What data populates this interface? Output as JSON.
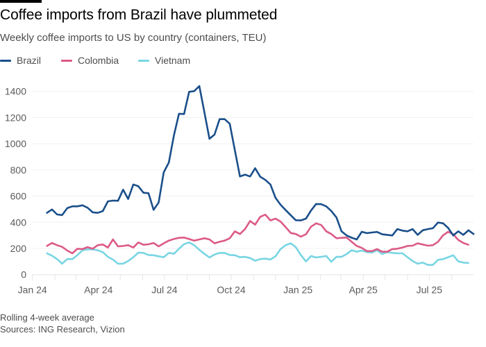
{
  "header": {
    "title": "Coffee imports from Brazil have plummeted",
    "subtitle": "Weekly coffee imports to US by country (containers, TEU)"
  },
  "legend": [
    {
      "label": "Brazil",
      "color": "#1a4f8a"
    },
    {
      "label": "Colombia",
      "color": "#dc5a86"
    },
    {
      "label": "Vietnam",
      "color": "#78d5e3"
    }
  ],
  "footer": {
    "note": "Rolling 4-week average",
    "sources": "Sources: ING Research, Vizion"
  },
  "chart_data": {
    "type": "line",
    "title": "Coffee imports from Brazil have plummeted",
    "subtitle": "Weekly coffee imports to US by country (containers, TEU)",
    "xlabel": "",
    "ylabel": "",
    "ylim": [
      0,
      1400
    ],
    "yticks": [
      0,
      200,
      400,
      600,
      800,
      1000,
      1200,
      1400
    ],
    "ytick_labels": [
      "0",
      "200",
      "400",
      "600",
      "800",
      "1000",
      "1200",
      "1400"
    ],
    "xlim": [
      "2024-01-01",
      "2025-08-31"
    ],
    "xticks": [
      {
        "label": "Jan 24",
        "date": "2024-01-01"
      },
      {
        "label": "Apr 24",
        "date": "2024-04-01"
      },
      {
        "label": "Jul 24",
        "date": "2024-07-01"
      },
      {
        "label": "Oct 24",
        "date": "2024-10-01"
      },
      {
        "label": "Jan 25",
        "date": "2025-01-01"
      },
      {
        "label": "Apr 25",
        "date": "2025-04-01"
      },
      {
        "label": "Jul 25",
        "date": "2025-07-01"
      }
    ],
    "x_start": "2024-01-21",
    "x_step_days": 7,
    "grid": true,
    "legend_position": "top-left",
    "note": "Rolling 4-week average",
    "series": [
      {
        "name": "Brazil",
        "color": "#1a4f8a",
        "values": [
          472,
          498,
          460,
          455,
          508,
          522,
          522,
          530,
          511,
          476,
          472,
          486,
          560,
          566,
          564,
          649,
          578,
          689,
          675,
          626,
          622,
          495,
          551,
          781,
          857,
          1064,
          1229,
          1227,
          1397,
          1402,
          1441,
          1241,
          1038,
          1070,
          1188,
          1188,
          1153,
          950,
          750,
          764,
          750,
          813,
          748,
          724,
          689,
          587,
          534,
          493,
          454,
          416,
          414,
          428,
          490,
          540,
          538,
          522,
          486,
          437,
          331,
          299,
          282,
          269,
          327,
          317,
          322,
          326,
          308,
          304,
          299,
          348,
          336,
          331,
          348,
          304,
          339,
          348,
          354,
          398,
          392,
          357,
          299,
          331,
          304,
          339,
          310
        ]
      },
      {
        "name": "Colombia",
        "color": "#dc5a86",
        "values": [
          219,
          242,
          225,
          212,
          184,
          163,
          198,
          195,
          210,
          198,
          225,
          230,
          207,
          269,
          216,
          219,
          225,
          207,
          246,
          228,
          232,
          242,
          216,
          239,
          260,
          272,
          281,
          283,
          272,
          260,
          269,
          278,
          269,
          239,
          251,
          260,
          278,
          331,
          310,
          348,
          410,
          382,
          442,
          458,
          414,
          428,
          405,
          363,
          318,
          310,
          290,
          308,
          366,
          392,
          379,
          331,
          310,
          278,
          281,
          283,
          251,
          219,
          204,
          180,
          180,
          195,
          175,
          175,
          195,
          198,
          207,
          219,
          221,
          239,
          230,
          221,
          225,
          251,
          301,
          327,
          308,
          265,
          242,
          228
        ]
      },
      {
        "name": "Vietnam",
        "color": "#78d5e3",
        "values": [
          163,
          145,
          119,
          83,
          119,
          119,
          149,
          186,
          193,
          193,
          186,
          172,
          136,
          115,
          83,
          83,
          104,
          133,
          168,
          166,
          150,
          148,
          140,
          133,
          166,
          159,
          198,
          233,
          246,
          225,
          189,
          159,
          131,
          154,
          166,
          166,
          150,
          148,
          133,
          136,
          127,
          106,
          119,
          122,
          115,
          140,
          195,
          225,
          239,
          210,
          150,
          101,
          142,
          131,
          136,
          142,
          98,
          136,
          136,
          157,
          186,
          175,
          184,
          172,
          168,
          186,
          157,
          172,
          166,
          163,
          163,
          133,
          104,
          83,
          92,
          74,
          74,
          113,
          119,
          133,
          148,
          101,
          92,
          89
        ]
      }
    ]
  }
}
